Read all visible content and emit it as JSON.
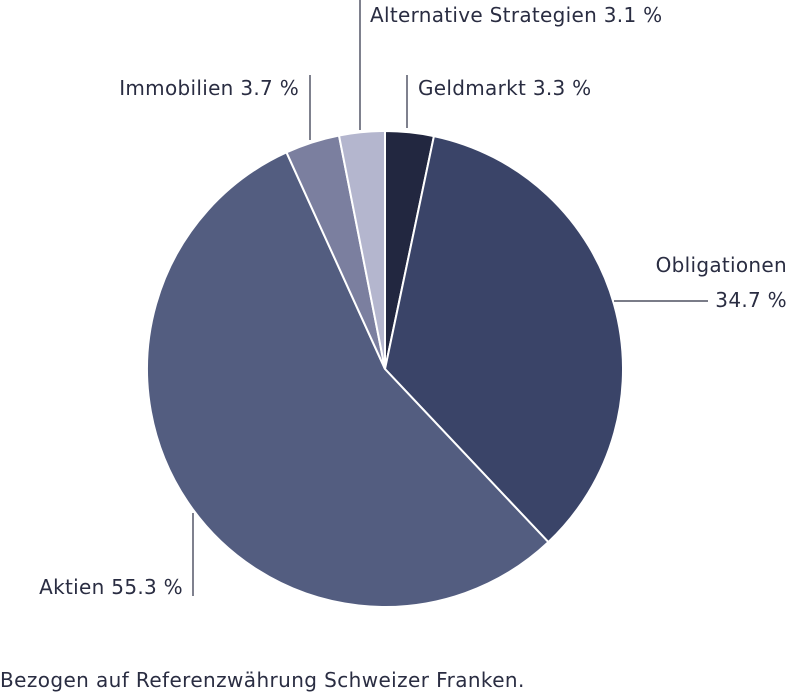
{
  "chart_data": {
    "type": "pie",
    "categories": [
      "Geldmarkt",
      "Obligationen",
      "Aktien",
      "Immobilien",
      "Alternative Strategien"
    ],
    "values": [
      3.3,
      34.7,
      55.3,
      3.7,
      3.1
    ],
    "labels": [
      {
        "name": "Geldmarkt",
        "value": "3.3 %"
      },
      {
        "name": "Obligationen",
        "value": "34.7 %"
      },
      {
        "name": "Aktien",
        "value": "55.3 %"
      },
      {
        "name": "Immobilien",
        "value": "3.7 %"
      },
      {
        "name": "Alternative Strategien",
        "value": "3.1 %"
      }
    ],
    "colors": [
      "#222740",
      "#3a4468",
      "#535d80",
      "#7b7f9f",
      "#b4b6ce"
    ],
    "start": "12 o'clock, clockwise"
  },
  "footnote": "Bezogen auf Referenzwährung Schweizer Franken."
}
